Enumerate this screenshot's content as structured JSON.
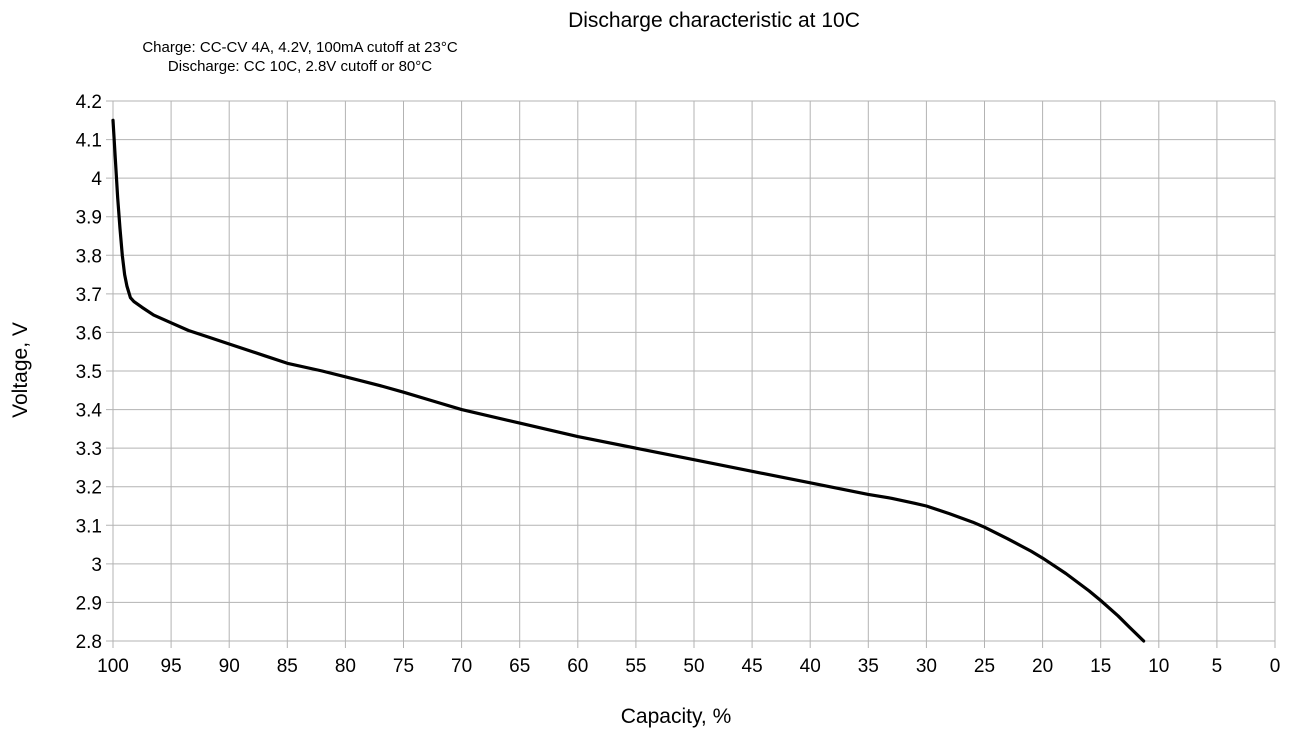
{
  "chart_data": {
    "type": "line",
    "title": "Discharge characteristic at 10C",
    "subtitle_lines": [
      "Charge: CC-CV 4A, 4.2V, 100mA cutoff at 23°C",
      "Discharge: CC 10C, 2.8V cutoff or 80°C"
    ],
    "xlabel": "Capacity, %",
    "ylabel": "Voltage, V",
    "xlim": [
      100,
      0
    ],
    "ylim": [
      2.8,
      4.2
    ],
    "x_ticks": [
      "100",
      "95",
      "90",
      "85",
      "80",
      "75",
      "70",
      "65",
      "60",
      "55",
      "50",
      "45",
      "40",
      "35",
      "30",
      "25",
      "20",
      "15",
      "10",
      "5",
      "0"
    ],
    "y_ticks": [
      "4.2",
      "4.1",
      "4",
      "3.9",
      "3.8",
      "3.7",
      "3.6",
      "3.5",
      "3.4",
      "3.3",
      "3.2",
      "3.1",
      "3",
      "2.9",
      "2.8"
    ],
    "grid": true,
    "line_color": "#000000",
    "grid_color": "#b3b3b3",
    "series": [
      {
        "x": [
          100,
          99.8,
          99.6,
          99.4,
          99.2,
          99.0,
          98.8,
          98.5,
          98.2,
          97.5,
          96.5,
          95,
          93.5,
          92,
          90,
          87,
          85,
          82,
          80,
          77,
          75,
          72,
          70,
          65,
          60,
          55,
          50,
          45,
          40,
          35,
          33,
          31,
          30,
          28,
          26,
          25,
          23,
          21,
          20,
          18,
          16,
          15,
          13.5,
          12.5,
          11.3
        ],
        "y": [
          4.15,
          4.05,
          3.95,
          3.87,
          3.8,
          3.75,
          3.72,
          3.69,
          3.68,
          3.665,
          3.645,
          3.625,
          3.605,
          3.59,
          3.57,
          3.54,
          3.52,
          3.5,
          3.485,
          3.462,
          3.445,
          3.418,
          3.4,
          3.365,
          3.33,
          3.3,
          3.27,
          3.24,
          3.21,
          3.18,
          3.17,
          3.157,
          3.15,
          3.13,
          3.108,
          3.095,
          3.065,
          3.033,
          3.015,
          2.975,
          2.93,
          2.905,
          2.865,
          2.835,
          2.8
        ]
      }
    ]
  }
}
